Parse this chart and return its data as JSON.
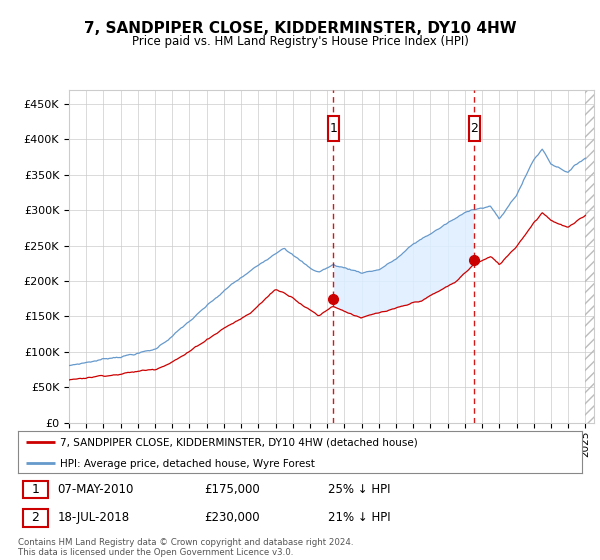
{
  "title": "7, SANDPIPER CLOSE, KIDDERMINSTER, DY10 4HW",
  "subtitle": "Price paid vs. HM Land Registry's House Price Index (HPI)",
  "ylim": [
    0,
    470000
  ],
  "yticks": [
    0,
    50000,
    100000,
    150000,
    200000,
    250000,
    300000,
    350000,
    400000,
    450000
  ],
  "xlim_start": 1995.0,
  "xlim_end": 2025.5,
  "bg_color": "#ffffff",
  "grid_color": "#cccccc",
  "hpi_color": "#6699cc",
  "price_color": "#cc0000",
  "transaction1_x": 2010.35,
  "transaction1_y": 175000,
  "transaction2_x": 2018.54,
  "transaction2_y": 230000,
  "shade_color": "#ddeeff",
  "legend_entries": [
    "7, SANDPIPER CLOSE, KIDDERMINSTER, DY10 4HW (detached house)",
    "HPI: Average price, detached house, Wyre Forest"
  ],
  "annotation1_label": "1",
  "annotation1_date": "07-MAY-2010",
  "annotation1_price": "£175,000",
  "annotation1_hpi": "25% ↓ HPI",
  "annotation2_label": "2",
  "annotation2_date": "18-JUL-2018",
  "annotation2_price": "£230,000",
  "annotation2_hpi": "21% ↓ HPI",
  "footer": "Contains HM Land Registry data © Crown copyright and database right 2024.\nThis data is licensed under the Open Government Licence v3.0."
}
